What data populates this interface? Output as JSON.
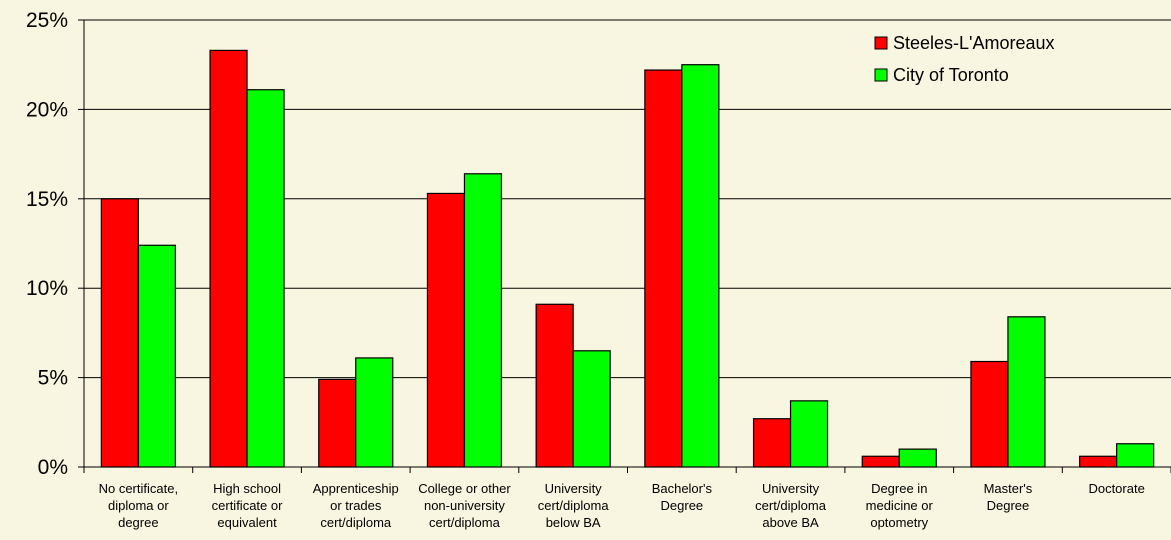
{
  "chart_data": {
    "type": "bar",
    "title": "",
    "xlabel": "",
    "ylabel": "",
    "ylim": [
      0,
      25
    ],
    "y_ticks": [
      "0%",
      "5%",
      "10%",
      "15%",
      "20%",
      "25%"
    ],
    "grid": true,
    "legend_position": "top-right",
    "categories": [
      [
        "No certificate,",
        "diploma or",
        "degree"
      ],
      [
        "High school",
        "certificate or",
        "equivalent"
      ],
      [
        "Apprenticeship",
        "or trades",
        "cert/diploma"
      ],
      [
        "College or other",
        "non-university",
        "cert/diploma"
      ],
      [
        "University",
        "cert/diploma",
        "below  BA"
      ],
      [
        "Bachelor's",
        "Degree"
      ],
      [
        "University",
        "cert/diploma",
        "above BA"
      ],
      [
        "Degree in",
        "medicine or",
        "optometry"
      ],
      [
        "Master's",
        "Degree"
      ],
      [
        "Doctorate"
      ]
    ],
    "series": [
      {
        "name": "Steeles-L'Amoreaux",
        "color": "#ff0000",
        "values": [
          15.0,
          23.3,
          4.9,
          15.3,
          9.1,
          22.2,
          2.7,
          0.6,
          5.9,
          0.6
        ]
      },
      {
        "name": "City of Toronto",
        "color": "#00ff00",
        "values": [
          12.4,
          21.1,
          6.1,
          16.4,
          6.5,
          22.5,
          3.7,
          1.0,
          8.4,
          1.3
        ]
      }
    ]
  }
}
